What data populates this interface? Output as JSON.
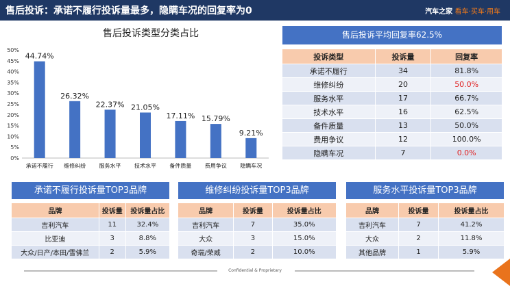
{
  "header": {
    "title": "售后投诉：承诺不履行投诉量最多，隐瞒车况的回复率为0",
    "logo_brand": "汽车之家",
    "logo_slogan": "看车·买车·用车"
  },
  "chart_data": {
    "type": "bar",
    "title": "售后投诉类型分类占比",
    "categories": [
      "承诺不履行",
      "维修纠纷",
      "服务水平",
      "技术水平",
      "备件质量",
      "费用争议",
      "隐瞒车况"
    ],
    "values": [
      44.74,
      26.32,
      22.37,
      21.05,
      17.11,
      15.79,
      9.21
    ],
    "data_labels": [
      "44.74%",
      "26.32%",
      "22.37%",
      "21.05%",
      "17.11%",
      "15.79%",
      "9.21%"
    ],
    "ylim": [
      0,
      50
    ],
    "yticks": [
      "0%",
      "5%",
      "10%",
      "15%",
      "20%",
      "25%",
      "30%",
      "35%",
      "40%",
      "45%",
      "50%"
    ],
    "grid": false,
    "color": "#4472c4"
  },
  "reply": {
    "title": "售后投诉平均回复率62.5%",
    "headers": [
      "投诉类型",
      "投诉量",
      "回复率"
    ],
    "rows": [
      [
        "承诺不履行",
        "34",
        "81.8%"
      ],
      [
        "维修纠纷",
        "20",
        "50.0%"
      ],
      [
        "服务水平",
        "17",
        "66.7%"
      ],
      [
        "技术水平",
        "16",
        "62.5%"
      ],
      [
        "备件质量",
        "13",
        "50.0%"
      ],
      [
        "费用争议",
        "12",
        "100.0%"
      ],
      [
        "隐瞒车况",
        "7",
        "0.0%"
      ]
    ],
    "highlight_color": "#e02020"
  },
  "top3": [
    {
      "title": "承诺不履行投诉量TOP3品牌",
      "headers": [
        "品牌",
        "投诉量",
        "投诉量占比"
      ],
      "rows": [
        [
          "吉利汽车",
          "11",
          "32.4%"
        ],
        [
          "比亚迪",
          "3",
          "8.8%"
        ],
        [
          "大众/日产/本田/雪佛兰",
          "2",
          "5.9%"
        ]
      ]
    },
    {
      "title": "维修纠纷投诉量TOP3品牌",
      "headers": [
        "品牌",
        "投诉量",
        "投诉量占比"
      ],
      "rows": [
        [
          "吉利汽车",
          "7",
          "35.0%"
        ],
        [
          "大众",
          "3",
          "15.0%"
        ],
        [
          "奇瑞/荣威",
          "2",
          "10.0%"
        ]
      ]
    },
    {
      "title": "服务水平投诉量TOP3品牌",
      "headers": [
        "品牌",
        "投诉量",
        "投诉量占比"
      ],
      "rows": [
        [
          "吉利汽车",
          "7",
          "41.2%"
        ],
        [
          "大众",
          "2",
          "11.8%"
        ],
        [
          "其他品牌",
          "1",
          "5.9%"
        ]
      ]
    }
  ],
  "footer": {
    "text": "Confidential & Proprietary"
  }
}
